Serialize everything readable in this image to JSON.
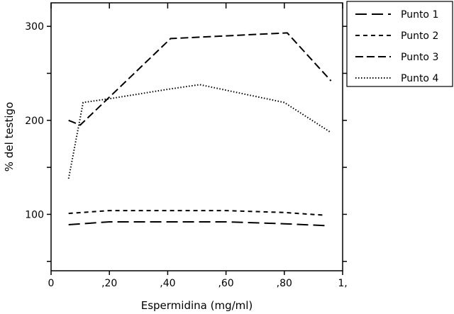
{
  "chart_data": {
    "type": "line",
    "xlabel": "Espermidina (mg/ml)",
    "ylabel": "% del testigo",
    "xlim": [
      0,
      1.0
    ],
    "ylim": [
      40,
      325
    ],
    "x_ticks": [
      {
        "value": 0,
        "label": "0"
      },
      {
        "value": 0.2,
        "label": ",20"
      },
      {
        "value": 0.4,
        "label": ",40"
      },
      {
        "value": 0.6,
        "label": ",60"
      },
      {
        "value": 0.8,
        "label": ",80"
      },
      {
        "value": 1.0,
        "label": "1,"
      }
    ],
    "y_ticks": [
      {
        "value": 100,
        "label": "100"
      },
      {
        "value": 200,
        "label": "200"
      },
      {
        "value": 300,
        "label": "300"
      }
    ],
    "grid": false,
    "legend_position": "outside top-right",
    "series": [
      {
        "name": "Punto 1",
        "dash": "long-dash",
        "x": [
          0.06,
          0.2,
          0.4,
          0.6,
          0.8,
          0.94
        ],
        "y": [
          89,
          92,
          92,
          92,
          90,
          88
        ]
      },
      {
        "name": "Punto 2",
        "dash": "short-dash",
        "x": [
          0.06,
          0.2,
          0.4,
          0.6,
          0.8,
          0.94
        ],
        "y": [
          101,
          104,
          104,
          104,
          102,
          99
        ]
      },
      {
        "name": "Punto 3",
        "dash": "medium-dash",
        "x": [
          0.06,
          0.1,
          0.41,
          0.81,
          0.96
        ],
        "y": [
          200,
          195,
          287,
          293,
          242
        ]
      },
      {
        "name": "Punto 4",
        "dash": "dotted",
        "x": [
          0.06,
          0.11,
          0.2,
          0.4,
          0.51,
          0.8,
          0.96
        ],
        "y": [
          138,
          219,
          223,
          233,
          238,
          219,
          187
        ]
      }
    ]
  }
}
